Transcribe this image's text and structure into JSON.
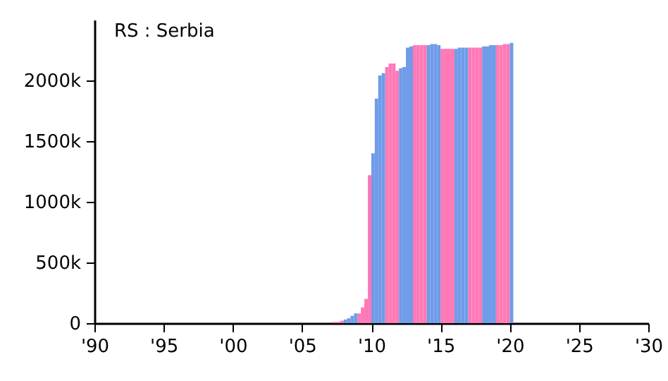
{
  "chart_data": {
    "type": "bar",
    "title": "RS : Serbia",
    "series": [
      {
        "color": "#ff78b5",
        "x": [
          "2007-04",
          "2007-07",
          "2007-10",
          "2009-01",
          "2009-04",
          "2009-07",
          "2009-10",
          "2011-01",
          "2011-04",
          "2011-07",
          "2011-10",
          "2013-01",
          "2013-04",
          "2013-07",
          "2013-10",
          "2015-01",
          "2015-04",
          "2015-07",
          "2015-10",
          "2017-01",
          "2017-04",
          "2017-07",
          "2017-10",
          "2019-01",
          "2019-04",
          "2019-07",
          "2019-10"
        ],
        "values": [
          10000,
          10000,
          20000,
          80000,
          130000,
          200000,
          1220000,
          2110000,
          2140000,
          2140000,
          2080000,
          2290000,
          2290000,
          2290000,
          2290000,
          2260000,
          2260000,
          2260000,
          2260000,
          2270000,
          2270000,
          2270000,
          2270000,
          2290000,
          2290000,
          2300000,
          2300000
        ]
      },
      {
        "color": "#6f9be8",
        "x": [
          "2008-01",
          "2008-04",
          "2008-07",
          "2008-10",
          "2010-01",
          "2010-04",
          "2010-07",
          "2010-10",
          "2012-01",
          "2012-04",
          "2012-07",
          "2012-10",
          "2014-01",
          "2014-04",
          "2014-07",
          "2014-10",
          "2016-01",
          "2016-04",
          "2016-07",
          "2016-10",
          "2018-01",
          "2018-04",
          "2018-07",
          "2018-10",
          "2020-01"
        ],
        "values": [
          30000,
          40000,
          60000,
          80000,
          1400000,
          1850000,
          2040000,
          2060000,
          2100000,
          2110000,
          2270000,
          2280000,
          2290000,
          2300000,
          2300000,
          2290000,
          2260000,
          2270000,
          2270000,
          2270000,
          2280000,
          2280000,
          2290000,
          2290000,
          2310000
        ]
      }
    ],
    "xlim": [
      "1990",
      "2030"
    ],
    "xticks": [
      {
        "value": "1990",
        "label": "'90"
      },
      {
        "value": "1995",
        "label": "'95"
      },
      {
        "value": "2000",
        "label": "'00"
      },
      {
        "value": "2005",
        "label": "'05"
      },
      {
        "value": "2010",
        "label": "'10"
      },
      {
        "value": "2015",
        "label": "'15"
      },
      {
        "value": "2020",
        "label": "'20"
      },
      {
        "value": "2025",
        "label": "'25"
      },
      {
        "value": "2030",
        "label": "'30"
      }
    ],
    "ylim": [
      0,
      2500000
    ],
    "yticks": [
      0,
      {
        "value": 500000,
        "label": "500k"
      },
      {
        "value": 1000000,
        "label": "1000k"
      },
      {
        "value": 1500000,
        "label": "1500k"
      },
      {
        "value": 2000000,
        "label": "2000k"
      }
    ],
    "grid": false
  }
}
